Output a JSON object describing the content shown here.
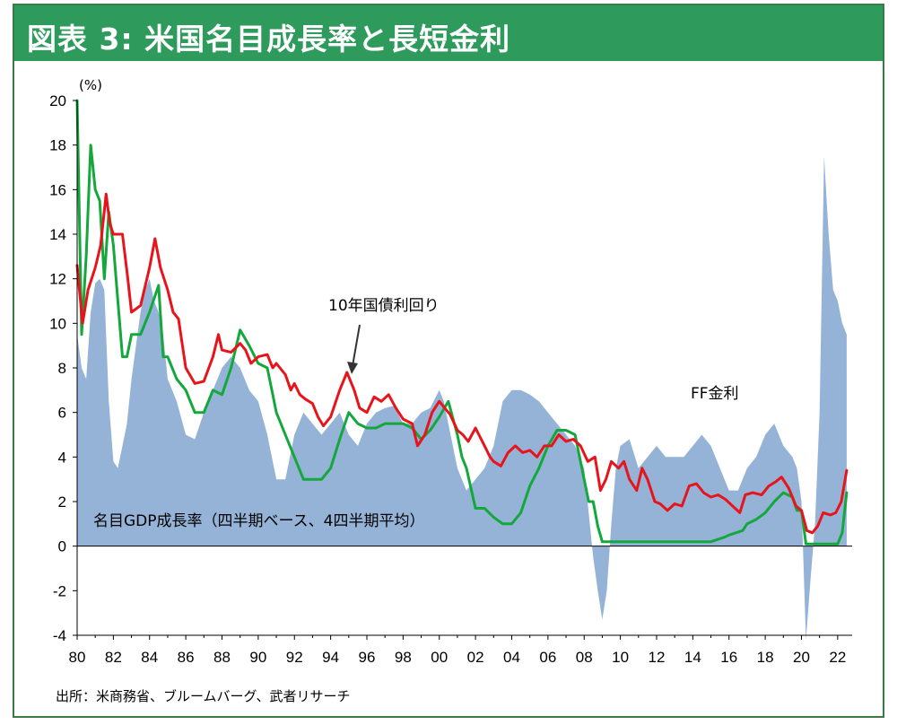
{
  "title": "図表 3: 米国名目成長率と長短金利",
  "source": "出所：米商務省、ブルームバーグ、武者リサーチ",
  "chart_data": {
    "type": "line",
    "unit_label": "(%)",
    "ylim": [
      -4,
      20
    ],
    "xlim": [
      1980,
      2022.8
    ],
    "y_ticks": [
      "20",
      "18",
      "16",
      "14",
      "12",
      "10",
      "8",
      "6",
      "4",
      "2",
      "0",
      "-2",
      "-4"
    ],
    "x_ticks": [
      "80",
      "82",
      "84",
      "86",
      "88",
      "90",
      "92",
      "94",
      "96",
      "98",
      "00",
      "02",
      "04",
      "06",
      "08",
      "10",
      "12",
      "14",
      "16",
      "18",
      "20",
      "22"
    ],
    "annotations": {
      "ten_year_label": "10年国債利回り",
      "ff_label": "FF金利",
      "gdp_label": "名目GDP成長率（四半期ベース、4四半期平均）"
    },
    "colors": {
      "gdp": "#95b3d7",
      "ten_year": "#e8141c",
      "ff": "#14a83c"
    },
    "series": [
      {
        "name": "名目GDP成長率（四半期ベース、4四半期平均）",
        "type": "area",
        "x": [
          1980.0,
          1980.25,
          1980.5,
          1980.75,
          1981.0,
          1981.25,
          1981.5,
          1981.75,
          1982.0,
          1982.25,
          1982.5,
          1982.75,
          1983.0,
          1983.25,
          1983.5,
          1983.75,
          1984.0,
          1984.25,
          1984.5,
          1984.75,
          1985.0,
          1985.5,
          1986.0,
          1986.5,
          1987.0,
          1987.5,
          1988.0,
          1988.5,
          1989.0,
          1989.5,
          1990.0,
          1990.5,
          1991.0,
          1991.5,
          1992.0,
          1992.5,
          1993.0,
          1993.5,
          1994.0,
          1994.5,
          1995.0,
          1995.5,
          1996.0,
          1996.5,
          1997.0,
          1997.5,
          1998.0,
          1998.5,
          1999.0,
          1999.5,
          2000.0,
          2000.25,
          2000.5,
          2001.0,
          2001.5,
          2002.0,
          2002.5,
          2003.0,
          2003.5,
          2004.0,
          2004.5,
          2005.0,
          2005.5,
          2006.0,
          2006.5,
          2007.0,
          2007.5,
          2008.0,
          2008.25,
          2008.5,
          2008.75,
          2009.0,
          2009.25,
          2009.5,
          2009.75,
          2010.0,
          2010.5,
          2011.0,
          2011.5,
          2012.0,
          2012.5,
          2013.0,
          2013.5,
          2014.0,
          2014.5,
          2015.0,
          2015.5,
          2016.0,
          2016.5,
          2017.0,
          2017.5,
          2018.0,
          2018.5,
          2019.0,
          2019.5,
          2019.75,
          2020.0,
          2020.25,
          2020.5,
          2020.75,
          2021.0,
          2021.25,
          2021.5,
          2021.75,
          2022.0,
          2022.25,
          2022.5
        ],
        "values": [
          9.5,
          8.0,
          7.5,
          10.5,
          11.8,
          12.0,
          11.5,
          6.5,
          3.8,
          3.5,
          4.5,
          5.5,
          7.5,
          9.0,
          10.5,
          11.5,
          12.0,
          11.0,
          10.5,
          9.5,
          7.5,
          6.5,
          5.0,
          4.8,
          6.0,
          7.0,
          8.0,
          8.5,
          8.0,
          7.0,
          6.5,
          5.0,
          3.0,
          3.0,
          5.0,
          6.0,
          5.5,
          5.0,
          5.5,
          6.0,
          5.0,
          4.5,
          5.5,
          6.0,
          6.2,
          6.3,
          5.5,
          5.5,
          6.0,
          6.2,
          7.0,
          6.5,
          5.5,
          3.5,
          2.5,
          3.0,
          3.5,
          4.5,
          6.5,
          7.0,
          7.0,
          6.8,
          6.5,
          6.0,
          5.5,
          5.0,
          4.5,
          3.5,
          1.5,
          -0.5,
          -2.0,
          -3.3,
          -2.0,
          1.0,
          3.5,
          4.5,
          4.8,
          3.5,
          4.0,
          4.5,
          4.0,
          4.0,
          4.0,
          4.5,
          5.0,
          4.5,
          3.5,
          2.5,
          2.5,
          3.5,
          4.0,
          5.0,
          5.5,
          4.5,
          4.0,
          3.5,
          2.0,
          -4.2,
          -1.5,
          1.0,
          6.0,
          17.5,
          14.0,
          11.5,
          11.0,
          10.0,
          9.5
        ]
      },
      {
        "name": "10年国債利回り",
        "type": "line",
        "x": [
          1980.0,
          1980.3,
          1980.6,
          1981.0,
          1981.3,
          1981.6,
          1981.8,
          1982.0,
          1982.5,
          1982.8,
          1983.0,
          1983.5,
          1984.0,
          1984.3,
          1984.6,
          1985.0,
          1985.3,
          1985.6,
          1986.0,
          1986.5,
          1987.0,
          1987.5,
          1987.8,
          1988.0,
          1988.5,
          1989.0,
          1989.3,
          1989.6,
          1990.0,
          1990.5,
          1990.8,
          1991.0,
          1991.3,
          1991.5,
          1991.8,
          1992.0,
          1992.3,
          1992.6,
          1993.0,
          1993.3,
          1993.6,
          1994.0,
          1994.5,
          1994.9,
          1995.3,
          1995.6,
          1996.0,
          1996.4,
          1996.8,
          1997.2,
          1997.6,
          1998.0,
          1998.5,
          1998.8,
          1999.2,
          1999.6,
          2000.0,
          2000.3,
          2000.6,
          2001.0,
          2001.3,
          2001.6,
          2002.0,
          2002.5,
          2002.8,
          2003.0,
          2003.4,
          2003.8,
          2004.2,
          2004.6,
          2005.0,
          2005.4,
          2005.8,
          2006.2,
          2006.6,
          2007.0,
          2007.4,
          2007.8,
          2008.2,
          2008.6,
          2008.9,
          2009.2,
          2009.5,
          2009.9,
          2010.2,
          2010.5,
          2010.9,
          2011.2,
          2011.5,
          2011.9,
          2012.2,
          2012.6,
          2013.0,
          2013.4,
          2013.8,
          2014.2,
          2014.6,
          2015.0,
          2015.4,
          2015.8,
          2016.2,
          2016.6,
          2016.9,
          2017.3,
          2017.8,
          2018.2,
          2018.6,
          2018.9,
          2019.3,
          2019.7,
          2020.0,
          2020.3,
          2020.6,
          2020.9,
          2021.2,
          2021.6,
          2021.9,
          2022.2,
          2022.5
        ],
        "values": [
          12.6,
          10.0,
          11.5,
          12.5,
          13.5,
          15.8,
          14.5,
          14.0,
          14.0,
          12.0,
          10.5,
          10.8,
          12.5,
          13.8,
          12.5,
          11.5,
          10.5,
          10.2,
          8.0,
          7.3,
          7.4,
          8.5,
          9.5,
          8.8,
          8.7,
          9.1,
          8.8,
          8.2,
          8.5,
          8.6,
          8.0,
          8.2,
          7.9,
          7.7,
          7.0,
          7.3,
          6.8,
          6.6,
          6.4,
          5.8,
          5.4,
          5.8,
          7.0,
          7.8,
          7.0,
          6.2,
          6.0,
          6.7,
          6.5,
          6.8,
          6.2,
          5.7,
          5.5,
          4.5,
          5.0,
          6.0,
          6.5,
          6.2,
          5.9,
          5.2,
          5.0,
          4.7,
          5.3,
          4.5,
          4.0,
          3.8,
          3.6,
          4.2,
          4.5,
          4.2,
          4.3,
          4.0,
          4.5,
          4.5,
          5.0,
          4.7,
          4.8,
          4.5,
          3.8,
          4.0,
          2.5,
          3.0,
          3.8,
          3.5,
          3.8,
          3.0,
          2.5,
          3.5,
          3.0,
          2.0,
          1.9,
          1.6,
          1.9,
          1.8,
          2.7,
          2.8,
          2.4,
          2.2,
          2.3,
          2.1,
          1.8,
          1.5,
          2.3,
          2.4,
          2.3,
          2.7,
          2.9,
          3.1,
          2.6,
          1.8,
          1.6,
          0.7,
          0.6,
          0.9,
          1.5,
          1.4,
          1.5,
          2.0,
          3.4
        ]
      },
      {
        "name": "FF金利",
        "type": "line",
        "x": [
          1980.0,
          1980.25,
          1980.5,
          1980.75,
          1981.0,
          1981.25,
          1981.5,
          1981.75,
          1982.0,
          1982.25,
          1982.5,
          1982.75,
          1983.0,
          1983.5,
          1984.0,
          1984.5,
          1984.75,
          1985.0,
          1985.5,
          1986.0,
          1986.5,
          1987.0,
          1987.5,
          1988.0,
          1988.5,
          1989.0,
          1989.5,
          1990.0,
          1990.5,
          1991.0,
          1991.5,
          1992.0,
          1992.5,
          1993.0,
          1993.5,
          1994.0,
          1994.5,
          1995.0,
          1995.5,
          1996.0,
          1996.5,
          1997.0,
          1997.5,
          1998.0,
          1998.5,
          1999.0,
          1999.5,
          2000.0,
          2000.5,
          2001.0,
          2001.25,
          2001.5,
          2002.0,
          2002.5,
          2003.0,
          2003.5,
          2004.0,
          2004.5,
          2005.0,
          2005.5,
          2006.0,
          2006.5,
          2007.0,
          2007.5,
          2008.0,
          2008.25,
          2008.5,
          2008.75,
          2009.0,
          2010.0,
          2011.0,
          2012.0,
          2013.0,
          2014.0,
          2015.0,
          2015.75,
          2016.0,
          2016.75,
          2017.0,
          2017.5,
          2018.0,
          2018.5,
          2019.0,
          2019.5,
          2019.75,
          2020.0,
          2020.25,
          2021.0,
          2022.0,
          2022.25,
          2022.5
        ],
        "values": [
          20.0,
          9.5,
          13.0,
          18.0,
          16.0,
          15.5,
          12.0,
          15.0,
          13.5,
          11.0,
          8.5,
          8.5,
          9.5,
          9.5,
          10.5,
          11.7,
          8.5,
          8.5,
          7.5,
          7.0,
          6.0,
          6.0,
          7.0,
          6.8,
          8.0,
          9.7,
          9.0,
          8.2,
          8.0,
          6.0,
          5.0,
          4.0,
          3.0,
          3.0,
          3.0,
          3.5,
          4.8,
          6.0,
          5.5,
          5.3,
          5.3,
          5.5,
          5.5,
          5.5,
          5.3,
          4.8,
          5.2,
          5.8,
          6.5,
          5.0,
          4.0,
          3.5,
          1.7,
          1.7,
          1.3,
          1.0,
          1.0,
          1.5,
          2.7,
          3.5,
          4.5,
          5.2,
          5.2,
          5.0,
          3.0,
          2.0,
          2.0,
          0.9,
          0.2,
          0.2,
          0.2,
          0.2,
          0.2,
          0.2,
          0.2,
          0.4,
          0.5,
          0.7,
          1.0,
          1.2,
          1.5,
          2.0,
          2.4,
          2.2,
          1.6,
          1.6,
          0.1,
          0.1,
          0.1,
          0.6,
          2.4
        ]
      }
    ]
  }
}
